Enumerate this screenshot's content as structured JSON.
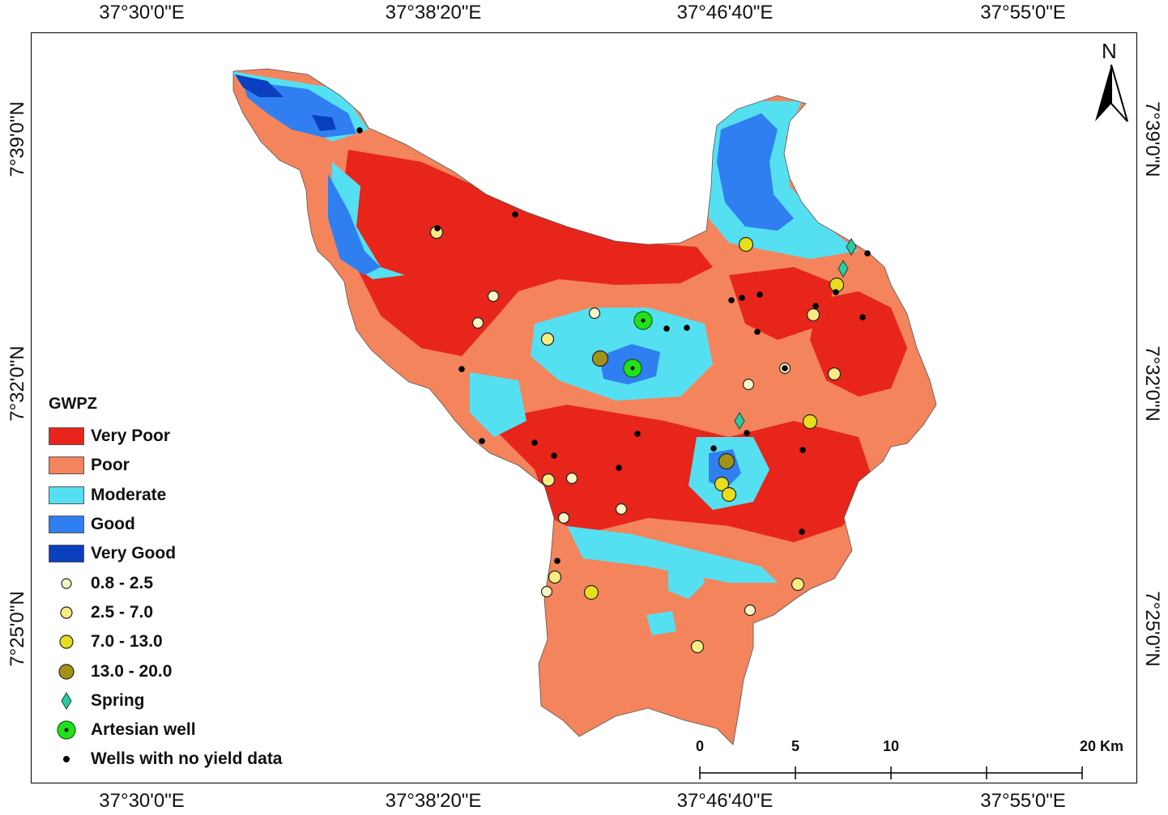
{
  "map": {
    "north_label": "N",
    "coordinates": {
      "longitudes": [
        "37°30'0\"E",
        "37°38'20\"E",
        "37°46'40\"E",
        "37°55'0\"E"
      ],
      "latitudes": [
        "7°39'0\"N",
        "7°32'0\"N",
        "7°25'0\"N"
      ]
    },
    "colors": {
      "very_poor": "#e8251a",
      "poor": "#f4845c",
      "moderate": "#55e0f2",
      "good": "#2f7ff0",
      "very_good": "#0a3fc0"
    },
    "legend": {
      "title": "GWPZ",
      "zones": [
        "Very Poor",
        "Poor",
        "Moderate",
        "Good",
        "Very Good"
      ],
      "yield_classes": [
        "0.8 - 2.5",
        "2.5 - 7.0",
        "7.0 - 13.0",
        "13.0 - 20.0"
      ],
      "spring": "Spring",
      "artesian": "Artesian well",
      "no_data": "Wells with no yield data"
    },
    "scale_bar": {
      "labels": [
        "0",
        "5",
        "10",
        "20 Km"
      ]
    }
  }
}
